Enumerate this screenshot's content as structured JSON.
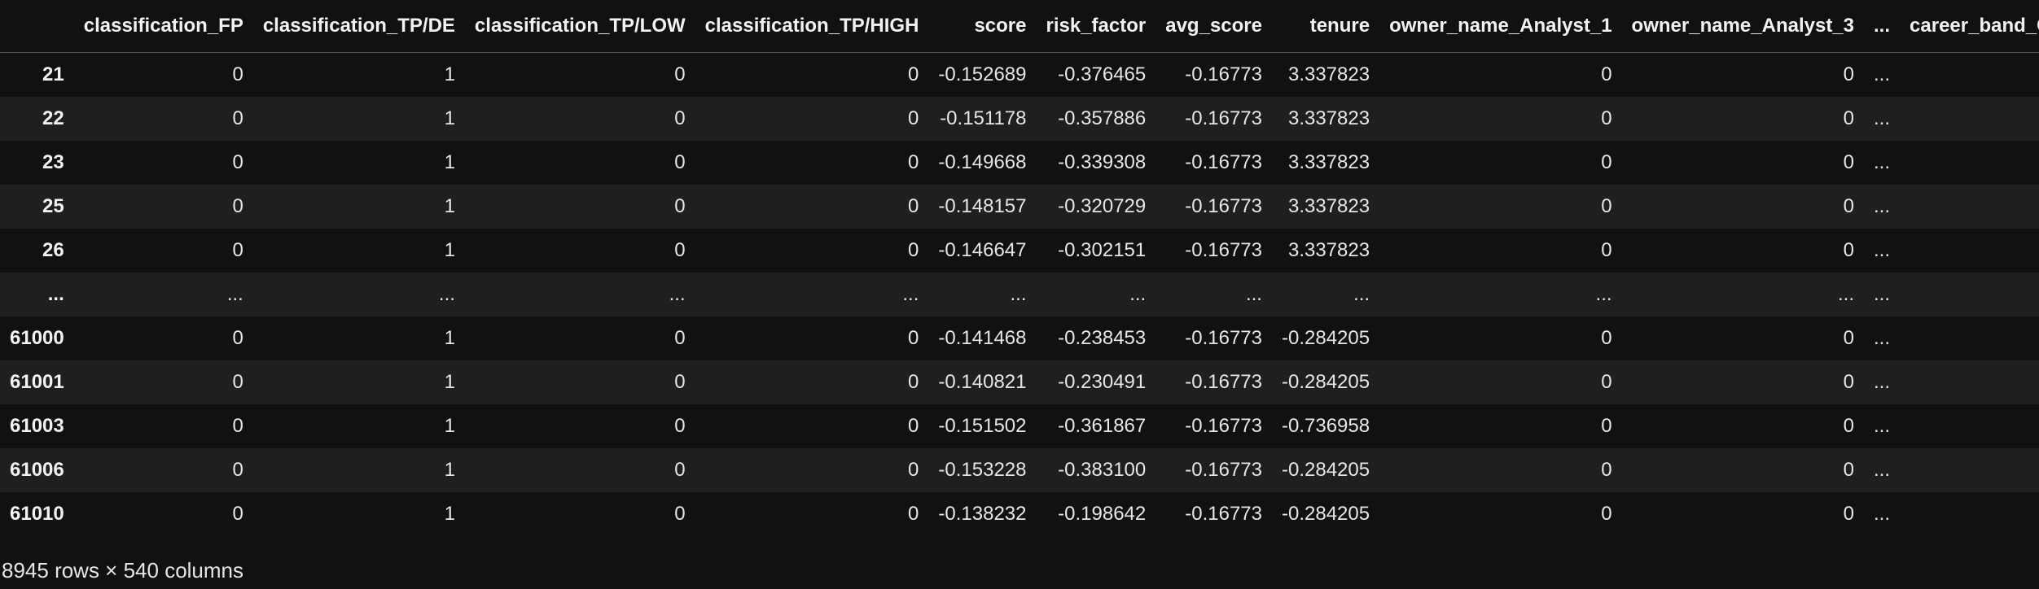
{
  "table": {
    "columns": [
      "",
      "classification_FP",
      "classification_TP/DE",
      "classification_TP/LOW",
      "classification_TP/HIGH",
      "score",
      "risk_factor",
      "avg_score",
      "tenure",
      "owner_name_Analyst_1",
      "owner_name_Analyst_3",
      "...",
      "career_band_C"
    ],
    "rows": [
      [
        "21",
        "0",
        "1",
        "0",
        "0",
        "-0.152689",
        "-0.376465",
        "-0.16773",
        "3.337823",
        "0",
        "0",
        "...",
        ""
      ],
      [
        "22",
        "0",
        "1",
        "0",
        "0",
        "-0.151178",
        "-0.357886",
        "-0.16773",
        "3.337823",
        "0",
        "0",
        "...",
        ""
      ],
      [
        "23",
        "0",
        "1",
        "0",
        "0",
        "-0.149668",
        "-0.339308",
        "-0.16773",
        "3.337823",
        "0",
        "0",
        "...",
        ""
      ],
      [
        "25",
        "0",
        "1",
        "0",
        "0",
        "-0.148157",
        "-0.320729",
        "-0.16773",
        "3.337823",
        "0",
        "0",
        "...",
        ""
      ],
      [
        "26",
        "0",
        "1",
        "0",
        "0",
        "-0.146647",
        "-0.302151",
        "-0.16773",
        "3.337823",
        "0",
        "0",
        "...",
        ""
      ],
      [
        "...",
        "...",
        "...",
        "...",
        "...",
        "...",
        "...",
        "...",
        "...",
        "...",
        "...",
        "...",
        ""
      ],
      [
        "61000",
        "0",
        "1",
        "0",
        "0",
        "-0.141468",
        "-0.238453",
        "-0.16773",
        "-0.284205",
        "0",
        "0",
        "...",
        ""
      ],
      [
        "61001",
        "0",
        "1",
        "0",
        "0",
        "-0.140821",
        "-0.230491",
        "-0.16773",
        "-0.284205",
        "0",
        "0",
        "...",
        ""
      ],
      [
        "61003",
        "0",
        "1",
        "0",
        "0",
        "-0.151502",
        "-0.361867",
        "-0.16773",
        "-0.736958",
        "0",
        "0",
        "...",
        ""
      ],
      [
        "61006",
        "0",
        "1",
        "0",
        "0",
        "-0.153228",
        "-0.383100",
        "-0.16773",
        "-0.284205",
        "0",
        "0",
        "...",
        ""
      ],
      [
        "61010",
        "0",
        "1",
        "0",
        "0",
        "-0.138232",
        "-0.198642",
        "-0.16773",
        "-0.284205",
        "0",
        "0",
        "...",
        ""
      ]
    ]
  },
  "footer": {
    "shape_text": "8945 rows × 540 columns"
  }
}
